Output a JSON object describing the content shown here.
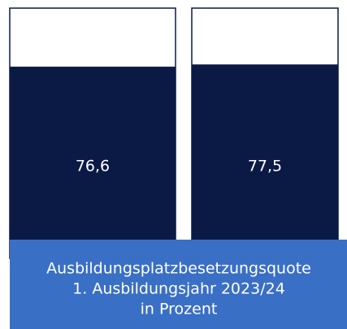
{
  "chart_data": {
    "type": "bar",
    "title": "Ausbildungsplatzbesetzungsquote",
    "subtitle": "1. Ausbildungsjahr 2023/24",
    "y_label": "in Prozent",
    "values": [
      76.6,
      77.5
    ],
    "value_labels": [
      "76,6",
      "77,5"
    ],
    "color": "#0b1a45",
    "ylim": [
      0,
      100
    ]
  }
}
